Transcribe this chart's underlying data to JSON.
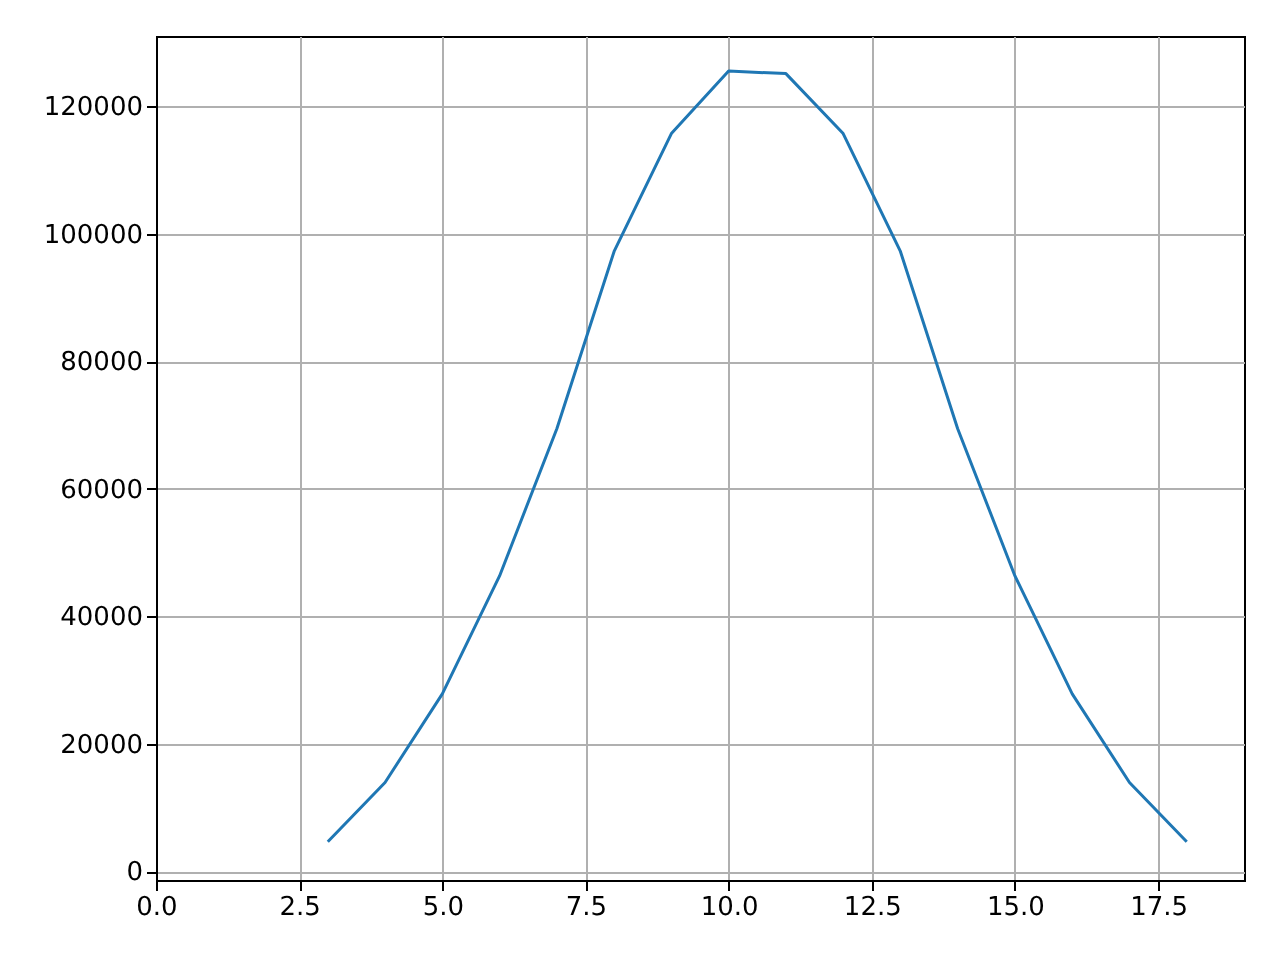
{
  "chart_data": {
    "type": "line",
    "x": [
      3,
      4,
      5,
      6,
      7,
      8,
      9,
      10,
      11,
      12,
      13,
      14,
      15,
      16,
      17,
      18
    ],
    "series": [
      {
        "color": "#1f77b4",
        "values": [
          4600,
          13900,
          27800,
          46300,
          69400,
          97200,
          115700,
          125500,
          125100,
          115700,
          97200,
          69400,
          46300,
          27800,
          13900,
          4600
        ]
      }
    ],
    "xlim": [
      0,
      19
    ],
    "ylim": [
      -1400,
      131000
    ],
    "xticks": [
      {
        "value": 0,
        "label": "0.0"
      },
      {
        "value": 2.5,
        "label": "2.5"
      },
      {
        "value": 5,
        "label": "5.0"
      },
      {
        "value": 7.5,
        "label": "7.5"
      },
      {
        "value": 10,
        "label": "10.0"
      },
      {
        "value": 12.5,
        "label": "12.5"
      },
      {
        "value": 15,
        "label": "15.0"
      },
      {
        "value": 17.5,
        "label": "17.5"
      }
    ],
    "yticks": [
      0,
      20000,
      40000,
      60000,
      80000,
      100000,
      120000
    ],
    "grid": true
  }
}
